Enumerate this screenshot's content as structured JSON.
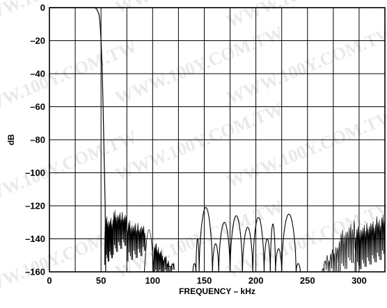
{
  "chart_data": {
    "type": "line",
    "title": "",
    "xlabel": "FREQUENCY – kHz",
    "ylabel": "dB",
    "xlim": [
      0,
      325
    ],
    "ylim": [
      -160,
      0
    ],
    "xticks": [
      0,
      50,
      100,
      150,
      200,
      250,
      300
    ],
    "yticks": [
      0,
      -20,
      -40,
      -60,
      -80,
      -100,
      -120,
      -140,
      -160
    ],
    "xtick_labels": [
      "0",
      "50",
      "100",
      "150",
      "200",
      "250",
      "300"
    ],
    "ytick_labels": [
      "0",
      "–20",
      "–40",
      "–60",
      "–80",
      "–100",
      "–120",
      "–140",
      "–160"
    ],
    "grid": true,
    "watermark": "WWW.100Y.COM.TW",
    "series": [
      {
        "line_color": "#000000",
        "passband": [
          [
            0,
            0
          ],
          [
            44,
            0
          ],
          [
            46,
            -1
          ],
          [
            48,
            -4
          ],
          [
            49,
            -9
          ],
          [
            50,
            -20
          ],
          [
            51,
            -35
          ],
          [
            52,
            -60
          ],
          [
            53,
            -90
          ],
          [
            54,
            -120
          ],
          [
            54.5,
            -160
          ]
        ],
        "stopband_packets": [
          {
            "x_start": 53.5,
            "x_end": 61,
            "lobes": 9,
            "upper": [
              -118,
              -120
            ],
            "lower": [
              -152,
              -148
            ]
          },
          {
            "x_start": 61,
            "x_end": 75,
            "lobes": 14,
            "upper": [
              -115,
              -120
            ],
            "lower": [
              -146,
              -140
            ]
          },
          {
            "x_start": 75,
            "x_end": 93,
            "lobes": 16,
            "upper": [
              -122,
              -128
            ],
            "lower": [
              -150,
              -146
            ]
          },
          {
            "x_start": 92,
            "x_end": 101,
            "lobes": 1,
            "upper": [
              -120,
              -120
            ],
            "lower": [
              -160,
              -160
            ]
          },
          {
            "x_start": 101,
            "x_end": 110,
            "lobes": 9,
            "upper": [
              -136,
              -145
            ],
            "lower": [
              -160,
              -160
            ]
          },
          {
            "x_start": 110,
            "x_end": 117,
            "lobes": 6,
            "upper": [
              -147,
              -154
            ],
            "lower": [
              -160,
              -160
            ]
          },
          {
            "x_start": 117,
            "x_end": 121,
            "lobes": 3,
            "upper": [
              -153,
              -156
            ],
            "lower": [
              -160,
              -160
            ]
          }
        ],
        "arches": [
          {
            "x_start": 139,
            "x_end": 142,
            "peak": -155
          },
          {
            "x_start": 142,
            "x_end": 145,
            "peak": -140
          },
          {
            "x_start": 145,
            "x_end": 158,
            "peak": -121
          },
          {
            "x_start": 158,
            "x_end": 164,
            "peak": -143
          },
          {
            "x_start": 164,
            "x_end": 175,
            "peak": -130
          },
          {
            "x_start": 175,
            "x_end": 187,
            "peak": -126
          },
          {
            "x_start": 187,
            "x_end": 197,
            "peak": -133
          },
          {
            "x_start": 197,
            "x_end": 208,
            "peak": -127
          },
          {
            "x_start": 208,
            "x_end": 214,
            "peak": -140
          },
          {
            "x_start": 214,
            "x_end": 219,
            "peak": -131
          },
          {
            "x_start": 219,
            "x_end": 225,
            "peak": -146
          },
          {
            "x_start": 225,
            "x_end": 239,
            "peak": -125
          },
          {
            "x_start": 239,
            "x_end": 243,
            "peak": -155
          }
        ],
        "rising_packets": [
          {
            "x_start": 264,
            "x_end": 270,
            "lobes": 3,
            "upper": [
              -155,
              -149
            ],
            "lower": [
              -160,
              -160
            ]
          },
          {
            "x_start": 270,
            "x_end": 280,
            "lobes": 6,
            "upper": [
              -148,
              -138
            ],
            "lower": [
              -160,
              -158
            ]
          },
          {
            "x_start": 280,
            "x_end": 296,
            "lobes": 10,
            "upper": [
              -130,
              -122
            ],
            "lower": [
              -158,
              -150
            ]
          },
          {
            "x_start": 296,
            "x_end": 325,
            "lobes": 24,
            "upper": [
              -126,
              -118
            ],
            "lower": [
              -156,
              -148
            ]
          }
        ]
      }
    ]
  }
}
